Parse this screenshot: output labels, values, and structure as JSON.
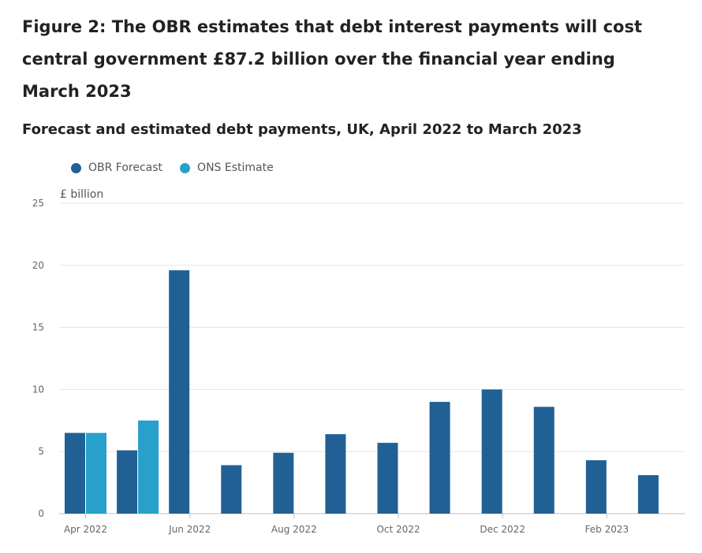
{
  "title": "Figure 2: The OBR estimates that debt interest payments will cost central government £87.2 billion over the financial year ending March 2023",
  "subtitle": "Forecast and estimated debt payments, UK, April 2022 to March 2023",
  "unit_label": "£ billion",
  "colors": {
    "obr": "#206095",
    "ons": "#27a0cc",
    "grid": "#e5e5e5",
    "axis": "#bfbfbf"
  },
  "chart_data": {
    "type": "bar",
    "title": "Forecast and estimated debt payments, UK, April 2022 to March 2023",
    "ylabel": "£ billion",
    "ylim": [
      0,
      25
    ],
    "yticks": [
      0,
      5,
      10,
      15,
      20,
      25
    ],
    "categories": [
      "Apr 2022",
      "May 2022",
      "Jun 2022",
      "Jul 2022",
      "Aug 2022",
      "Sep 2022",
      "Oct 2022",
      "Nov 2022",
      "Dec 2022",
      "Jan 2023",
      "Feb 2023",
      "Mar 2023"
    ],
    "x_tick_labels": [
      "Apr 2022",
      "",
      "Jun 2022",
      "",
      "Aug 2022",
      "",
      "Oct 2022",
      "",
      "Dec 2022",
      "",
      "Feb 2023",
      ""
    ],
    "series": [
      {
        "name": "OBR Forecast",
        "values": [
          6.5,
          5.1,
          19.6,
          3.9,
          4.9,
          6.4,
          5.7,
          9.0,
          10.0,
          8.6,
          4.3,
          3.1
        ]
      },
      {
        "name": "ONS Estimate",
        "values": [
          6.5,
          7.5,
          null,
          null,
          null,
          null,
          null,
          null,
          null,
          null,
          null,
          null
        ]
      }
    ],
    "legend_position": "top-left",
    "grid": true
  }
}
